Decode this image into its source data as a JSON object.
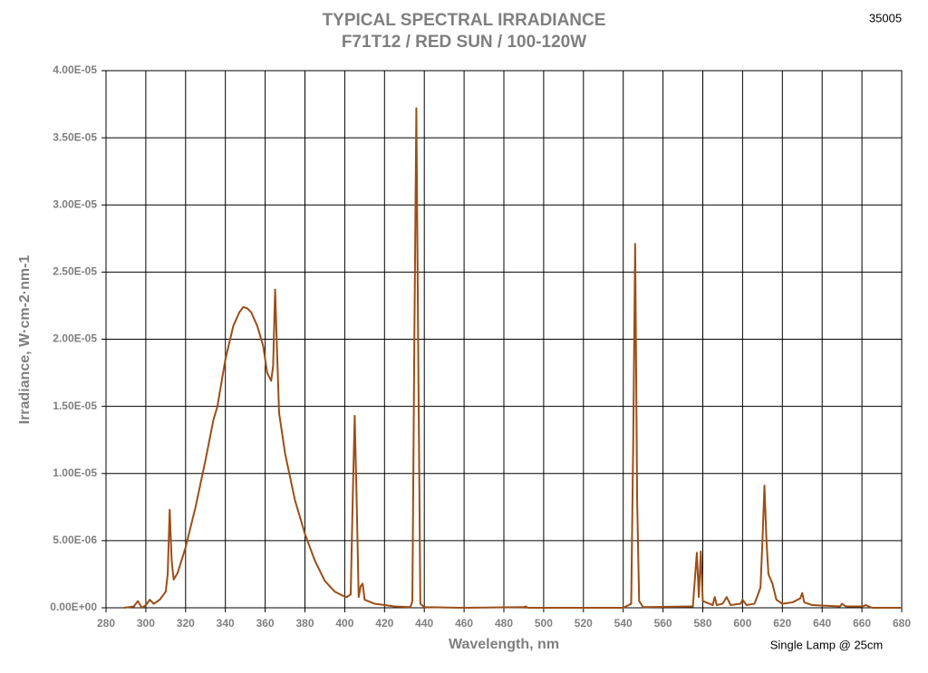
{
  "chart_data": {
    "type": "line",
    "title": "TYPICAL SPECTRAL IRRADIANCE",
    "subtitle": "F71T12 / RED SUN / 100-120W",
    "corner_label": "35005",
    "annotation": "Single Lamp @ 25cm",
    "x_label": "Wavelength, nm",
    "y_label": "Irradiance, W·cm-2·nm-1",
    "color": "#9c4e16",
    "grid": true,
    "xlim": [
      280,
      680
    ],
    "xticks": [
      280,
      300,
      320,
      340,
      360,
      380,
      400,
      420,
      440,
      460,
      480,
      500,
      520,
      540,
      560,
      580,
      600,
      620,
      640,
      660,
      680
    ],
    "ylim": [
      0,
      4e-05
    ],
    "yticks": [
      {
        "value": 0,
        "label": "0.00E+00"
      },
      {
        "value": 5e-06,
        "label": "5.00E-06"
      },
      {
        "value": 1e-05,
        "label": "1.00E-05"
      },
      {
        "value": 1.5e-05,
        "label": "1.50E-05"
      },
      {
        "value": 2e-05,
        "label": "2.00E-05"
      },
      {
        "value": 2.5e-05,
        "label": "2.50E-05"
      },
      {
        "value": 3e-05,
        "label": "3.00E-05"
      },
      {
        "value": 3.5e-05,
        "label": "3.50E-05"
      },
      {
        "value": 4e-05,
        "label": "4.00E-05"
      }
    ],
    "x": [
      289,
      294,
      296,
      298,
      300,
      302,
      304,
      307,
      310,
      311,
      312,
      313,
      314,
      316,
      320,
      325,
      330,
      334,
      336,
      340,
      344,
      347,
      349,
      351,
      353,
      356,
      359,
      361,
      363,
      364,
      365,
      366,
      367,
      370,
      375,
      380,
      385,
      390,
      395,
      399,
      401,
      403,
      404,
      405,
      406,
      407,
      408,
      409,
      410,
      415,
      425,
      433,
      434,
      435,
      436,
      437,
      438,
      440,
      460,
      490,
      491,
      492,
      540,
      544,
      545,
      546,
      547,
      548,
      550,
      575,
      577,
      578,
      579,
      580,
      585,
      586,
      587,
      590,
      592,
      594,
      599,
      600,
      602,
      606,
      609,
      610,
      611,
      612,
      613,
      615,
      617,
      620,
      625,
      629,
      630,
      631,
      635,
      649,
      650,
      652,
      658,
      660,
      662,
      665,
      680
    ],
    "values": [
      0,
      1e-07,
      5e-07,
      0,
      2e-07,
      6e-07,
      3e-07,
      6e-07,
      1.2e-06,
      2.5e-06,
      7.3e-06,
      3.5e-06,
      2.1e-06,
      2.6e-06,
      4.5e-06,
      7.5e-06,
      1.1e-05,
      1.4e-05,
      1.5e-05,
      1.85e-05,
      2.1e-05,
      2.2e-05,
      2.24e-05,
      2.23e-05,
      2.2e-05,
      2.1e-05,
      1.95e-05,
      1.75e-05,
      1.69e-05,
      1.8e-05,
      2.37e-05,
      1.9e-05,
      1.45e-05,
      1.15e-05,
      8e-06,
      5.5e-06,
      3.5e-06,
      2e-06,
      1.2e-06,
      9e-07,
      8e-07,
      1e-06,
      8e-06,
      1.43e-05,
      8e-06,
      8e-07,
      1.6e-06,
      1.8e-06,
      6e-07,
      3e-07,
      1e-07,
      5e-08,
      5e-07,
      2e-05,
      3.72e-05,
      1.8e-05,
      3e-07,
      5e-08,
      0,
      5e-08,
      1e-07,
      0,
      0,
      3e-07,
      1.2e-05,
      2.71e-05,
      8e-06,
      5e-07,
      5e-08,
      1e-07,
      4.1e-06,
      8e-07,
      4.2e-06,
      5e-07,
      2e-07,
      8e-07,
      2e-07,
      3e-07,
      8e-07,
      2e-07,
      3e-07,
      6e-07,
      2e-07,
      3e-07,
      1.5e-06,
      5e-06,
      9.1e-06,
      5e-06,
      2.5e-06,
      1.8e-06,
      6e-07,
      3e-07,
      4e-07,
      7e-07,
      1.1e-06,
      4e-07,
      2e-07,
      1e-07,
      3e-07,
      1e-07,
      1e-07,
      1e-07,
      2e-07,
      0,
      0
    ]
  }
}
